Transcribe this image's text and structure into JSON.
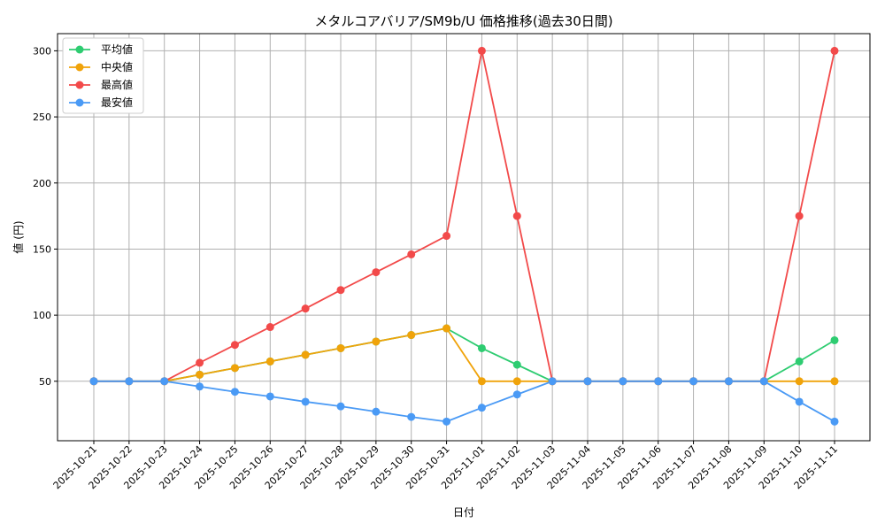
{
  "chart_data": {
    "type": "line",
    "title": "メタルコアバリア/SM9b/U 価格推移(過去30日間)",
    "xlabel": "日付",
    "ylabel": "値 (円)",
    "ylim": [
      5,
      313
    ],
    "yticks": [
      50,
      100,
      150,
      200,
      250,
      300
    ],
    "grid": true,
    "legend_position": "top-left",
    "categories": [
      "2025-10-21",
      "2025-10-22",
      "2025-10-23",
      "2025-10-24",
      "2025-10-25",
      "2025-10-26",
      "2025-10-27",
      "2025-10-28",
      "2025-10-29",
      "2025-10-30",
      "2025-10-31",
      "2025-11-01",
      "2025-11-02",
      "2025-11-03",
      "2025-11-04",
      "2025-11-05",
      "2025-11-06",
      "2025-11-07",
      "2025-11-08",
      "2025-11-09",
      "2025-11-10",
      "2025-11-11"
    ],
    "series": [
      {
        "name": "平均値",
        "color": "#2ecc71",
        "values": [
          50,
          50,
          50,
          55,
          60,
          65,
          70,
          75,
          80,
          85,
          90,
          75,
          62.5,
          50,
          50,
          50,
          50,
          50,
          50,
          50,
          65,
          81
        ]
      },
      {
        "name": "中央値",
        "color": "#f0a30a",
        "values": [
          50,
          50,
          50,
          55,
          60,
          65,
          70,
          75,
          80,
          85,
          90,
          50,
          50,
          50,
          50,
          50,
          50,
          50,
          50,
          50,
          50,
          50
        ]
      },
      {
        "name": "最高値",
        "color": "#f24a4a",
        "values": [
          50,
          50,
          50,
          64,
          77.5,
          91,
          105,
          119,
          132.5,
          146,
          160,
          300,
          175,
          50,
          50,
          50,
          50,
          50,
          50,
          50,
          175,
          300
        ]
      },
      {
        "name": "最安値",
        "color": "#4a9af5",
        "values": [
          50,
          50,
          50,
          46,
          42,
          38.5,
          34.5,
          31,
          27,
          23,
          19.5,
          30,
          40,
          50,
          50,
          50,
          50,
          50,
          50,
          50,
          34.5,
          19.5
        ]
      }
    ]
  }
}
